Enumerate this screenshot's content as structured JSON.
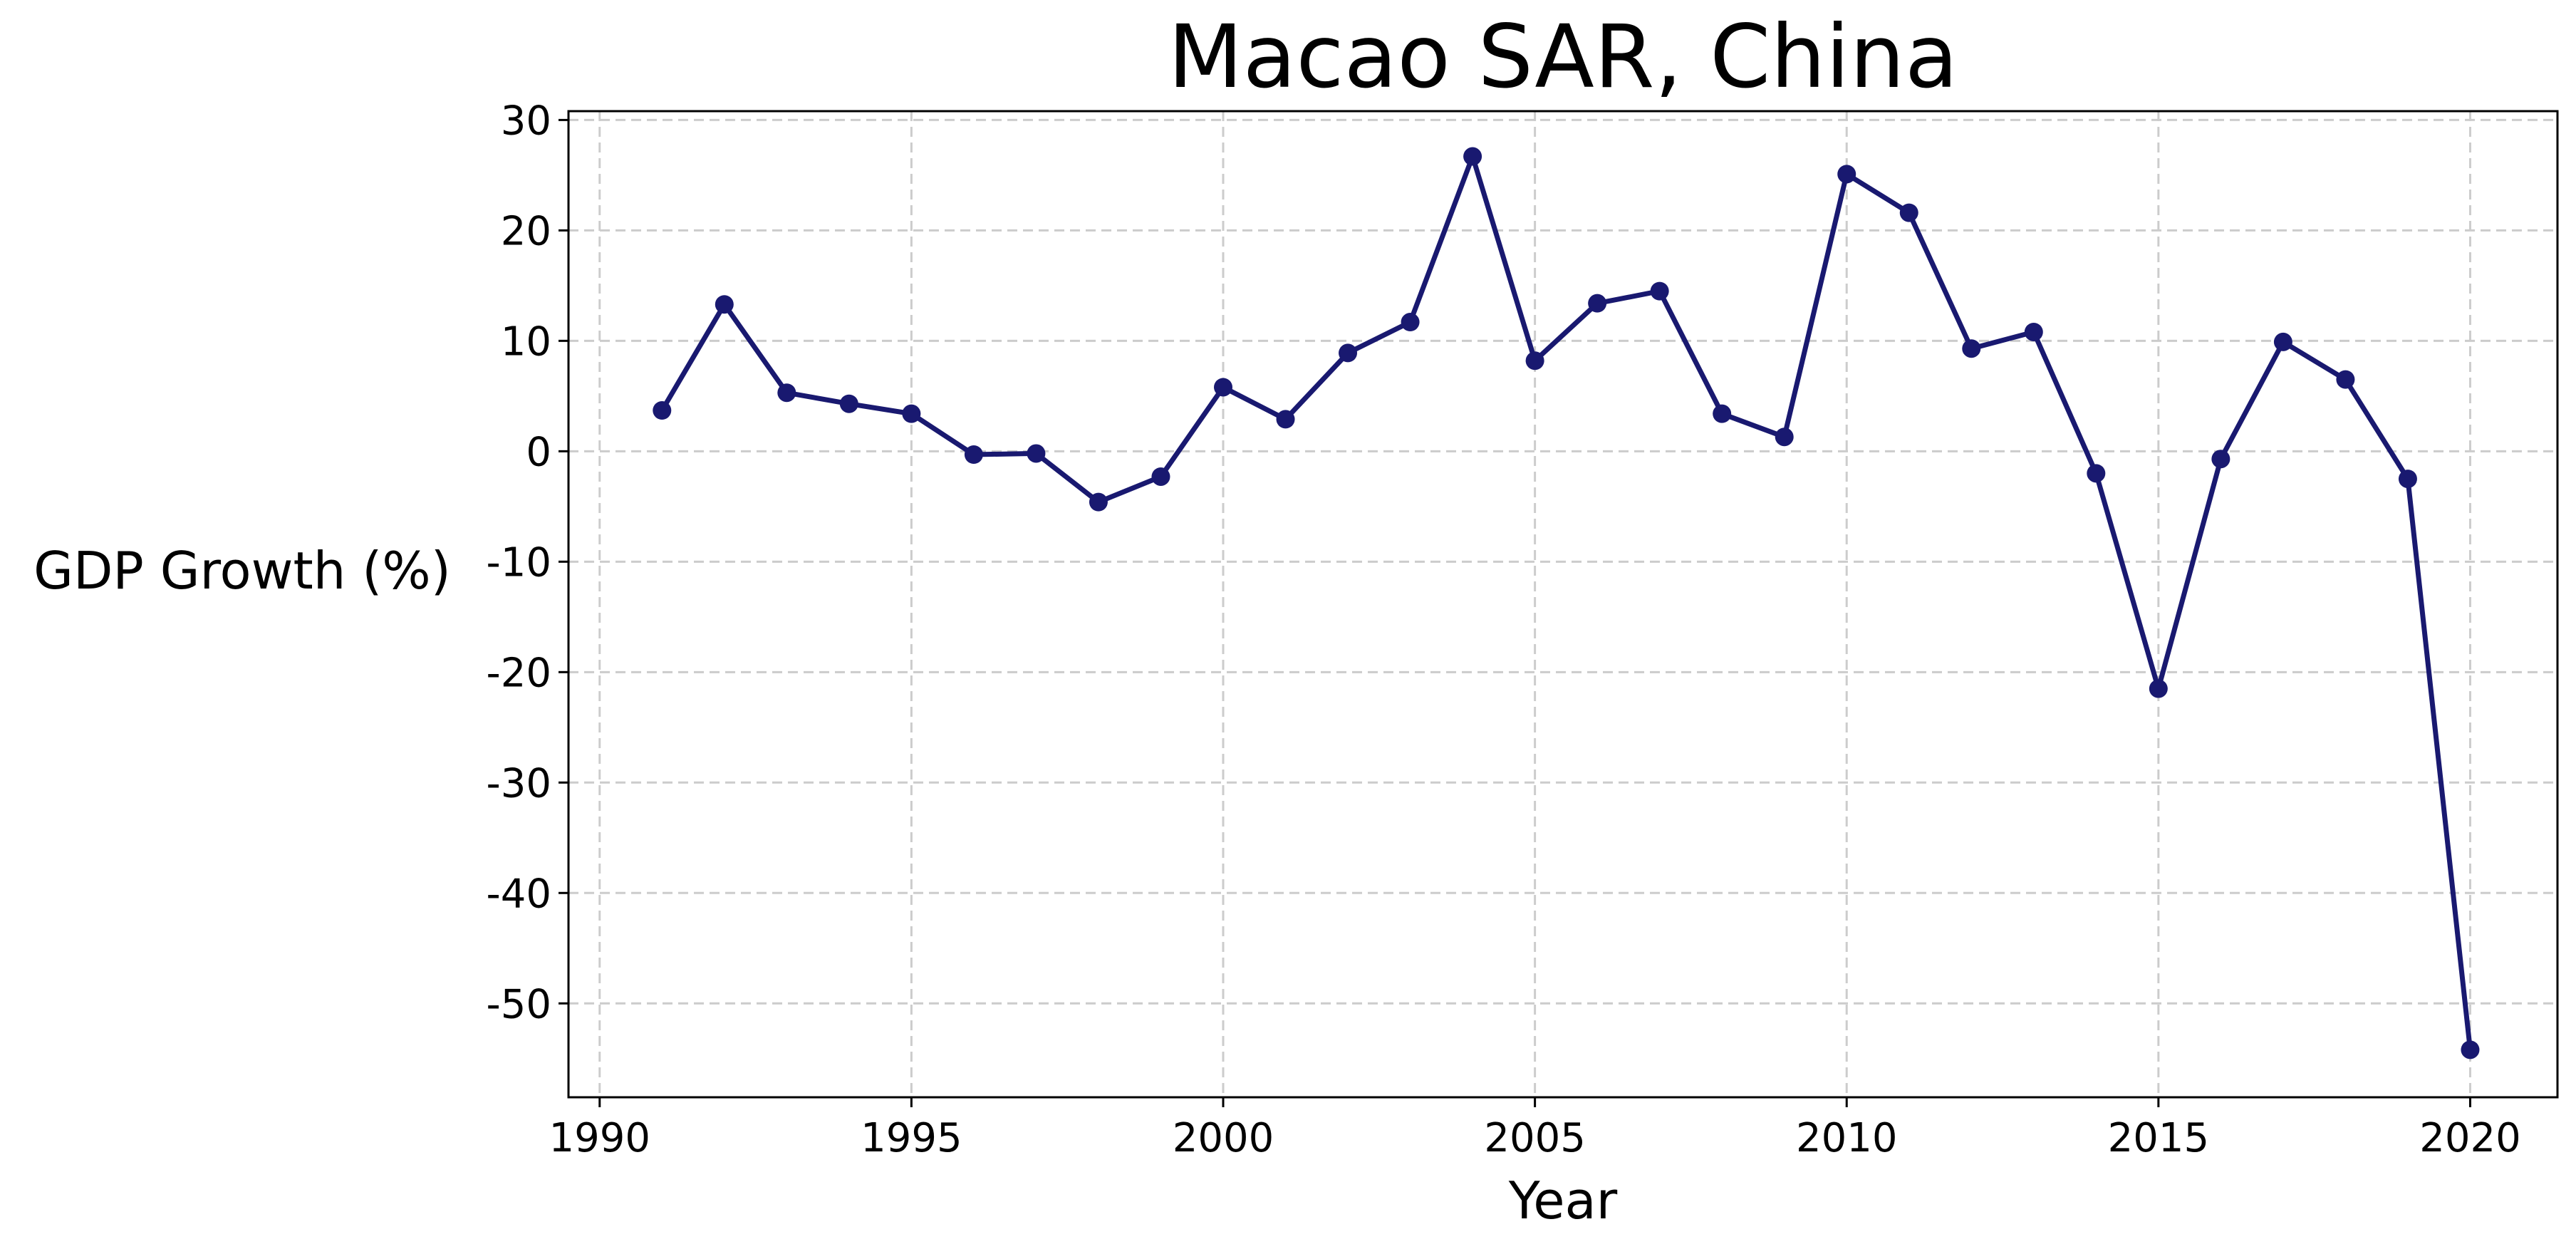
{
  "chart_data": {
    "type": "line",
    "title": "Macao SAR, China",
    "xlabel": "Year",
    "ylabel": "GDP Growth (%)",
    "xlim": [
      1989.5,
      2021.4
    ],
    "ylim": [
      -58.5,
      30.8
    ],
    "x_ticks": [
      1990,
      1995,
      2000,
      2005,
      2010,
      2015,
      2020
    ],
    "y_ticks": [
      30,
      20,
      10,
      0,
      -10,
      -20,
      -30,
      -40,
      -50
    ],
    "grid": true,
    "legend": "none",
    "series": [
      {
        "x": [
          1991,
          1992,
          1993,
          1994,
          1995,
          1996,
          1997,
          1998,
          1999,
          2000,
          2001,
          2002,
          2003,
          2004,
          2005,
          2006,
          2007,
          2008,
          2009,
          2010,
          2011,
          2012,
          2013,
          2014,
          2015,
          2016,
          2017,
          2018,
          2019,
          2020
        ],
        "values": [
          3.7,
          13.3,
          5.3,
          4.3,
          3.4,
          -0.3,
          -0.2,
          -4.6,
          -2.3,
          5.8,
          2.9,
          8.9,
          11.7,
          26.7,
          8.2,
          13.4,
          14.5,
          3.4,
          1.3,
          25.1,
          21.6,
          9.3,
          10.8,
          -2.0,
          -21.5,
          -0.7,
          9.9,
          6.5,
          -2.5,
          -54.2
        ]
      }
    ]
  },
  "colors": {
    "line": "#191970",
    "grid": "#cccccc",
    "axis": "#000000",
    "background": "#ffffff"
  }
}
